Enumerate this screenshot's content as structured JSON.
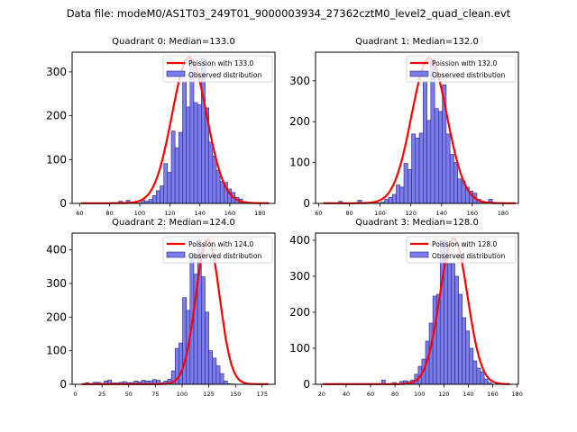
{
  "suptitle": "Data file: modeM0/AS1T03_249T01_9000003934_27362cztM0_level2_quad_clean.evt",
  "colors": {
    "bar_fill": "#7b7bf0",
    "bar_edge": "#2a2a6e",
    "line": "#ff0000"
  },
  "chart_data": [
    {
      "type": "bar",
      "title": "Quadrant 0: Median=133.0",
      "median": 133.0,
      "legend": [
        "Poission with 133.0",
        "Observed distribution"
      ],
      "legend_position": "top-right",
      "xlim": [
        55,
        190
      ],
      "ylim": [
        0,
        345
      ],
      "xticks": [
        60,
        80,
        100,
        120,
        140,
        160,
        180
      ],
      "yticks": [
        0,
        100,
        200,
        300
      ],
      "bin_start": 61,
      "bin_width": 2.5,
      "values": [
        1,
        0,
        0,
        0,
        1,
        0,
        1,
        0,
        2,
        0,
        5,
        0,
        7,
        0,
        1,
        1,
        7,
        5,
        9,
        18,
        29,
        40,
        91,
        71,
        165,
        127,
        162,
        277,
        220,
        330,
        230,
        225,
        330,
        218,
        140,
        108,
        75,
        50,
        48,
        33,
        25,
        14,
        10,
        4,
        2,
        1,
        1,
        0,
        0,
        0
      ],
      "poisson_peak": 333
    },
    {
      "type": "bar",
      "title": "Quadrant 1: Median=132.0",
      "median": 132.0,
      "legend": [
        "Poission with 132.0",
        "Observed distribution"
      ],
      "legend_position": "top-right",
      "xlim": [
        58,
        190
      ],
      "ylim": [
        0,
        370
      ],
      "xticks": [
        60,
        80,
        100,
        120,
        140,
        160,
        180
      ],
      "yticks": [
        0,
        100,
        200,
        300
      ],
      "bin_start": 63,
      "bin_width": 2.5,
      "values": [
        1,
        0,
        0,
        0,
        5,
        0,
        1,
        0,
        1,
        8,
        0,
        1,
        1,
        1,
        1,
        3,
        10,
        15,
        22,
        45,
        40,
        98,
        83,
        170,
        160,
        172,
        300,
        203,
        350,
        232,
        225,
        290,
        170,
        120,
        100,
        60,
        55,
        40,
        30,
        25,
        10,
        5,
        1,
        10,
        2,
        1,
        0,
        0,
        0,
        0
      ],
      "poisson_peak": 355
    },
    {
      "type": "bar",
      "title": "Quadrant 2: Median=124.0",
      "median": 124.0,
      "legend": [
        "Poission with 124.0",
        "Observed distribution"
      ],
      "legend_position": "top-right",
      "xlim": [
        -3,
        187
      ],
      "ylim": [
        0,
        450
      ],
      "xticks": [
        0,
        25,
        50,
        75,
        100,
        125,
        150,
        175
      ],
      "yticks": [
        0,
        100,
        200,
        300,
        400
      ],
      "bin_start": 6,
      "bin_width": 3.5,
      "values": [
        2,
        5,
        2,
        6,
        6,
        3,
        10,
        13,
        4,
        4,
        6,
        8,
        5,
        5,
        10,
        7,
        12,
        10,
        10,
        14,
        12,
        5,
        10,
        15,
        40,
        107,
        123,
        258,
        220,
        385,
        328,
        430,
        320,
        215,
        100,
        78,
        55,
        32,
        10,
        2,
        1,
        0,
        0,
        0,
        0,
        0,
        0,
        0,
        0,
        0
      ],
      "poisson_peak": 432
    },
    {
      "type": "bar",
      "title": "Quadrant 3: Median=128.0",
      "median": 128.0,
      "legend": [
        "Poission with 128.0",
        "Observed distribution"
      ],
      "legend_position": "top-right",
      "xlim": [
        15,
        181
      ],
      "ylim": [
        0,
        420
      ],
      "xticks": [
        20,
        40,
        60,
        80,
        100,
        120,
        140,
        160,
        180
      ],
      "yticks": [
        0,
        100,
        200,
        300,
        400
      ],
      "bin_start": 21,
      "bin_width": 3.0,
      "values": [
        0,
        0,
        0,
        0,
        0,
        0,
        0,
        0,
        0,
        0,
        0,
        0,
        0,
        0,
        0,
        0,
        12,
        0,
        0,
        5,
        2,
        8,
        10,
        8,
        12,
        28,
        50,
        70,
        120,
        170,
        245,
        250,
        400,
        400,
        335,
        335,
        300,
        250,
        185,
        148,
        100,
        65,
        45,
        35,
        15,
        5,
        0,
        0,
        0,
        0,
        0
      ],
      "poisson_peak": 405
    }
  ]
}
